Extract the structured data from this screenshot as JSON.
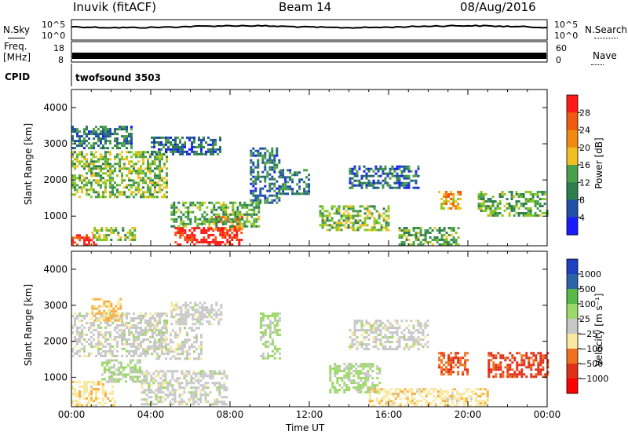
{
  "header": {
    "station": "Inuvik (fitACF)",
    "beam": "Beam 14",
    "date": "08/Aug/2016"
  },
  "strips": {
    "nsky_label": "N.Sky",
    "nsearch_label": "N.Search",
    "freq_label_1": "Freq.",
    "freq_label_2": "[MHz]",
    "nave_label": "Nave",
    "cpid_label": "CPID",
    "cpid_value": "twofsound 3503",
    "noise_ticks_left": [
      "10^5",
      "10^0"
    ],
    "noise_ticks_right": [
      "10^5",
      "10^0"
    ],
    "freq_ticks": [
      "18",
      "8"
    ],
    "nave_ticks": [
      "60",
      "0"
    ]
  },
  "x_axis": {
    "label": "Time UT",
    "ticks": [
      "00:00",
      "04:00",
      "08:00",
      "12:00",
      "16:00",
      "20:00",
      "00:00"
    ]
  },
  "colors": {
    "power": [
      "#1a1aff",
      "#1f4fa8",
      "#2d7d4e",
      "#4aa04a",
      "#88c820",
      "#f0c020",
      "#f08a10",
      "#f05a10",
      "#ff1a1a"
    ],
    "velocity": [
      "#2040c0",
      "#2a64a8",
      "#2a8870",
      "#58b848",
      "#9cd868",
      "#c8c8c8",
      "#f8e8a0",
      "#f8b040",
      "#f07020",
      "#e03018",
      "#ff0000"
    ]
  },
  "chart_data": [
    {
      "type": "heatmap",
      "title": "",
      "xlabel": "Time UT",
      "ylabel": "Slant Range [km]",
      "xlim": [
        0,
        24
      ],
      "ylim": [
        180,
        4500
      ],
      "yticks": [
        "4000",
        "3000",
        "2000",
        "1000"
      ],
      "colorbar_label": "Power [dB]",
      "colorbar_ticks": [
        "28",
        "24",
        "20",
        "16",
        "12",
        "8",
        "4"
      ],
      "color_scale": [
        0,
        30
      ],
      "regions": [
        {
          "t": [
            0.0,
            1.2
          ],
          "r": [
            180,
            500
          ],
          "v": 27
        },
        {
          "t": [
            1.0,
            3.2
          ],
          "r": [
            350,
            700
          ],
          "v": 14
        },
        {
          "t": [
            5.2,
            8.6
          ],
          "r": [
            180,
            700
          ],
          "v": 29
        },
        {
          "t": [
            7.0,
            8.6
          ],
          "r": [
            650,
            1000
          ],
          "v": 24
        },
        {
          "t": [
            0.0,
            4.8
          ],
          "r": [
            1500,
            2800
          ],
          "v": 14
        },
        {
          "t": [
            0.0,
            3.0
          ],
          "r": [
            2900,
            3500
          ],
          "v": 8
        },
        {
          "t": [
            4.0,
            7.5
          ],
          "r": [
            2700,
            3200
          ],
          "v": 7
        },
        {
          "t": [
            5.0,
            9.5
          ],
          "r": [
            700,
            1400
          ],
          "v": 12
        },
        {
          "t": [
            9.0,
            10.5
          ],
          "r": [
            1400,
            2900
          ],
          "v": 8
        },
        {
          "t": [
            10.5,
            12.0
          ],
          "r": [
            1600,
            2300
          ],
          "v": 8
        },
        {
          "t": [
            12.5,
            16.0
          ],
          "r": [
            600,
            1300
          ],
          "v": 14
        },
        {
          "t": [
            14.0,
            17.5
          ],
          "r": [
            1800,
            2400
          ],
          "v": 7
        },
        {
          "t": [
            16.5,
            19.5
          ],
          "r": [
            180,
            700
          ],
          "v": 12
        },
        {
          "t": [
            18.5,
            19.6
          ],
          "r": [
            1200,
            1700
          ],
          "v": 20
        },
        {
          "t": [
            20.5,
            24.0
          ],
          "r": [
            1000,
            1700
          ],
          "v": 12
        }
      ]
    },
    {
      "type": "heatmap",
      "title": "",
      "xlabel": "Time UT",
      "ylabel": "Slant Range [km]",
      "xlim": [
        0,
        24
      ],
      "ylim": [
        180,
        4500
      ],
      "yticks": [
        "4000",
        "3000",
        "2000",
        "1000"
      ],
      "colorbar_label": "Velocity [m s⁻¹]",
      "colorbar_ticks": [
        "1000",
        "500",
        "100",
        "25",
        "−25",
        "−100",
        "−500",
        "−1000"
      ],
      "color_scale": [
        -1000,
        1000
      ],
      "regions": [
        {
          "t": [
            0.0,
            2.2
          ],
          "r": [
            180,
            900
          ],
          "v": -200
        },
        {
          "t": [
            0.0,
            4.8
          ],
          "r": [
            1600,
            2800
          ],
          "v": 0
        },
        {
          "t": [
            1.0,
            2.5
          ],
          "r": [
            2600,
            3200
          ],
          "v": -300
        },
        {
          "t": [
            1.5,
            3.5
          ],
          "r": [
            900,
            1500
          ],
          "v": 100
        },
        {
          "t": [
            4.0,
            6.5
          ],
          "r": [
            1500,
            2400
          ],
          "v": 0
        },
        {
          "t": [
            3.5,
            7.8
          ],
          "r": [
            250,
            1200
          ],
          "v": 0
        },
        {
          "t": [
            5.0,
            7.5
          ],
          "r": [
            2500,
            3100
          ],
          "v": 0
        },
        {
          "t": [
            9.5,
            10.5
          ],
          "r": [
            1500,
            2800
          ],
          "v": 150
        },
        {
          "t": [
            13.0,
            15.5
          ],
          "r": [
            600,
            1400
          ],
          "v": 150
        },
        {
          "t": [
            14.0,
            18.0
          ],
          "r": [
            1800,
            2600
          ],
          "v": 0
        },
        {
          "t": [
            15.0,
            21.0
          ],
          "r": [
            180,
            700
          ],
          "v": -200
        },
        {
          "t": [
            18.5,
            20.0
          ],
          "r": [
            1100,
            1700
          ],
          "v": -600
        },
        {
          "t": [
            21.0,
            24.0
          ],
          "r": [
            1000,
            1700
          ],
          "v": -700
        }
      ]
    }
  ]
}
